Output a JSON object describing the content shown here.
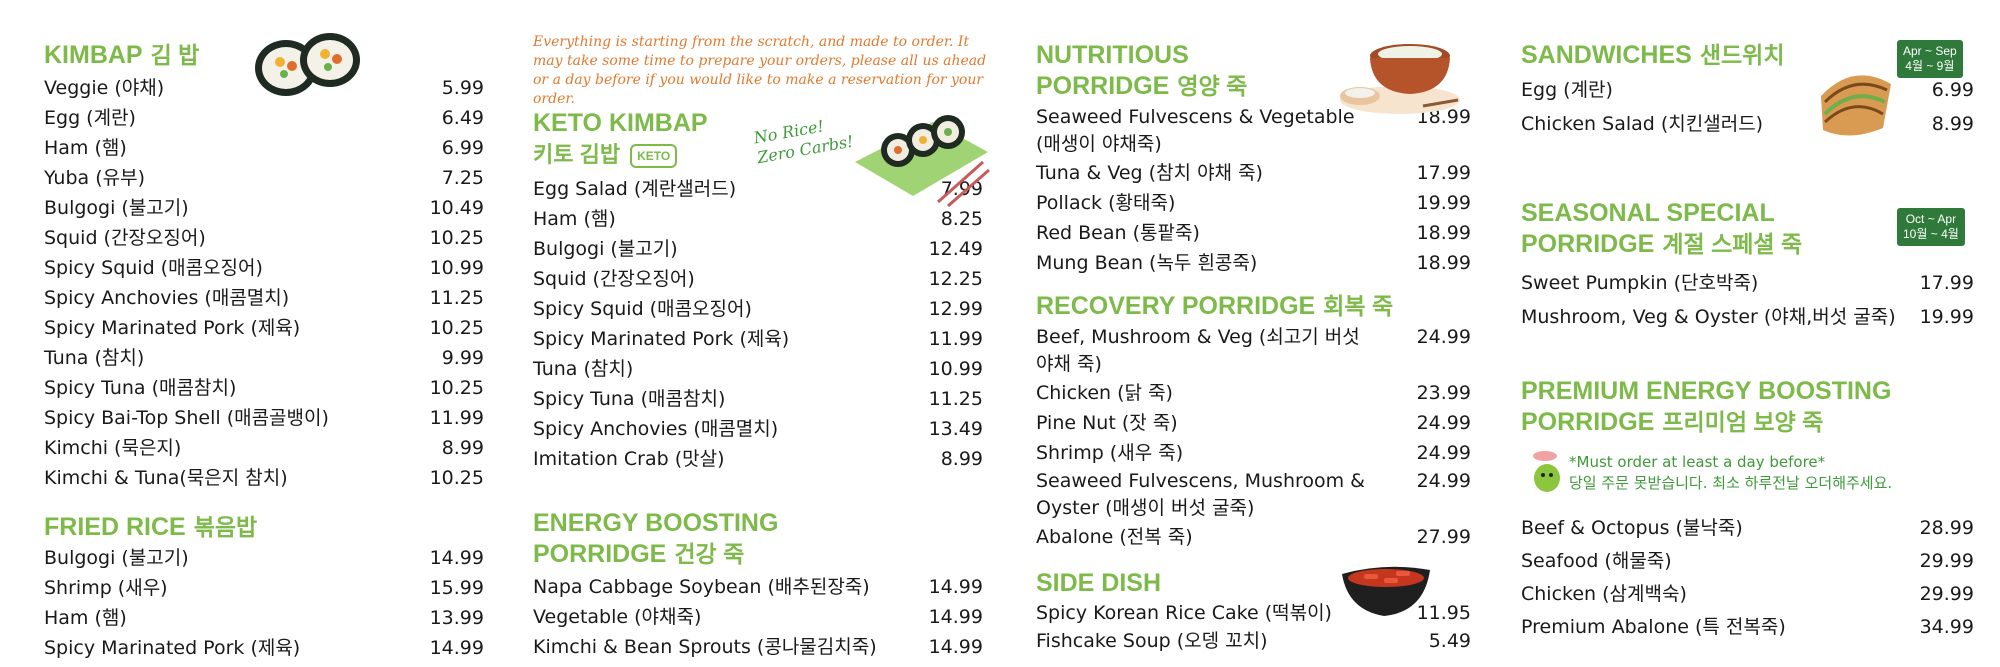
{
  "colors": {
    "heading": "#7dba4a",
    "note": "#e07a2e",
    "badge": "#2f7a3b"
  },
  "kimbap": {
    "title": "KIMBAP",
    "title_ko": "김 밥",
    "items": [
      {
        "name": "Veggie (야채)",
        "price": "5.99"
      },
      {
        "name": "Egg (계란)",
        "price": "6.49"
      },
      {
        "name": "Ham (햄)",
        "price": "6.99"
      },
      {
        "name": "Yuba (유부)",
        "price": "7.25"
      },
      {
        "name": "Bulgogi (불고기)",
        "price": "10.49"
      },
      {
        "name": "Squid (간장오징어)",
        "price": "10.25"
      },
      {
        "name": "Spicy Squid (매콤오징어)",
        "price": "10.99"
      },
      {
        "name": "Spicy Anchovies (매콤멸치)",
        "price": "11.25"
      },
      {
        "name": "Spicy Marinated Pork (제육)",
        "price": "10.25"
      },
      {
        "name": "Tuna (참치)",
        "price": "9.99"
      },
      {
        "name": "Spicy Tuna (매콤참치)",
        "price": "10.25"
      },
      {
        "name": "Spicy Bai-Top Shell (매콤골뱅이)",
        "price": "11.99"
      },
      {
        "name": "Kimchi (묵은지)",
        "price": "8.99"
      },
      {
        "name": "Kimchi & Tuna(묵은지 참치)",
        "price": "10.25"
      }
    ]
  },
  "fried_rice": {
    "title": "FRIED RICE",
    "title_ko": "볶음밥",
    "items": [
      {
        "name": "Bulgogi (불고기)",
        "price": "14.99"
      },
      {
        "name": "Shrimp (새우)",
        "price": "15.99"
      },
      {
        "name": "Ham (햄)",
        "price": "13.99"
      },
      {
        "name": "Spicy Marinated Pork (제육)",
        "price": "14.99"
      }
    ]
  },
  "notice": "Everything is starting from the scratch, and made to order. It may take some time to prepare your orders, please all us ahead or a day before if you would like to make a reservation for your order.",
  "keto_kimbap": {
    "title": "KETO KIMBAP",
    "title_ko": "키토 김밥",
    "keto_badge": "KETO",
    "no_rice": "No Rice!",
    "zero_carbs": "Zero Carbs!",
    "items": [
      {
        "name": "Egg Salad (계란샐러드)",
        "price": "7.99"
      },
      {
        "name": "Ham (햄)",
        "price": "8.25"
      },
      {
        "name": "Bulgogi (불고기)",
        "price": "12.49"
      },
      {
        "name": "Squid (간장오징어)",
        "price": "12.25"
      },
      {
        "name": "Spicy Squid (매콤오징어)",
        "price": "12.99"
      },
      {
        "name": "Spicy Marinated Pork (제육)",
        "price": "11.99"
      },
      {
        "name": "Tuna (참치)",
        "price": "10.99"
      },
      {
        "name": "Spicy Tuna (매콤참치)",
        "price": "11.25"
      },
      {
        "name": "Spicy Anchovies (매콤멸치)",
        "price": "13.49"
      },
      {
        "name": "Imitation Crab (맛살)",
        "price": "8.99"
      }
    ]
  },
  "energy_porridge": {
    "title1": "ENERGY BOOSTING",
    "title2": "PORRIDGE",
    "title_ko": "건강 죽",
    "items": [
      {
        "name": "Napa Cabbage Soybean (배추된장죽)",
        "price": "14.99"
      },
      {
        "name": "Vegetable (야채죽)",
        "price": "14.99"
      },
      {
        "name": "Kimchi & Bean Sprouts (콩나물김치죽)",
        "price": "14.99"
      }
    ]
  },
  "nutritious": {
    "title1": "NUTRITIOUS",
    "title2": "PORRIDGE",
    "title_ko": "영양 죽",
    "items": [
      {
        "name": "Seaweed Fulvescens & Vegetable (매생이 야채죽)",
        "price": "18.99"
      },
      {
        "name": "Tuna & Veg (참치 야채 죽)",
        "price": "17.99"
      },
      {
        "name": "Pollack (황태죽)",
        "price": "19.99"
      },
      {
        "name": "Red Bean (통팥죽)",
        "price": "18.99"
      },
      {
        "name": "Mung Bean (녹두 흰콩죽)",
        "price": "18.99"
      }
    ]
  },
  "recovery": {
    "title": "RECOVERY PORRIDGE",
    "title_ko": "회복 죽",
    "items": [
      {
        "name": "Beef, Mushroom & Veg (쇠고기 버섯 야채 죽)",
        "price": "24.99"
      },
      {
        "name": "Chicken (닭 죽)",
        "price": "23.99"
      },
      {
        "name": "Pine Nut (잣 죽)",
        "price": "24.99"
      },
      {
        "name": "Shrimp (새우 죽)",
        "price": "24.99"
      },
      {
        "name": "Seaweed Fulvescens, Mushroom & Oyster (매생이 버섯 굴죽)",
        "price": "24.99"
      },
      {
        "name": "Abalone (전복 죽)",
        "price": "27.99"
      }
    ]
  },
  "side_dish": {
    "title": "SIDE DISH",
    "items": [
      {
        "name": "Spicy Korean Rice Cake (떡볶이)",
        "price": "11.95"
      },
      {
        "name": "Fishcake Soup (오뎅 꼬치)",
        "price": "5.49"
      }
    ]
  },
  "sandwiches": {
    "title": "SANDWICHES",
    "title_ko": "샌드위치",
    "badge_line1": "Apr ~ Sep",
    "badge_line2": "4월 ~ 9월",
    "items": [
      {
        "name": "Egg (계란)",
        "price": "6.99"
      },
      {
        "name": "Chicken Salad (치킨샐러드)",
        "price": "8.99"
      }
    ]
  },
  "seasonal": {
    "title1": "SEASONAL SPECIAL",
    "title2": "PORRIDGE",
    "title_ko": "계절 스페셜 죽",
    "badge_line1": "Oct ~ Apr",
    "badge_line2": "10월 ~ 4월",
    "items": [
      {
        "name": "Sweet Pumpkin (단호박죽)",
        "price": "17.99"
      },
      {
        "name": "Mushroom, Veg & Oyster (야채,버섯 굴죽)",
        "price": "19.99"
      }
    ]
  },
  "premium": {
    "title1": "PREMIUM ENERGY BOOSTING",
    "title2": "PORRIDGE",
    "title_ko": "프리미엄 보양 죽",
    "warn_en": "*Must order at least a day before*",
    "warn_ko": "당일 주문 못받습니다. 최소 하루전날 오더해주세요.",
    "items": [
      {
        "name": "Beef & Octopus (불낙죽)",
        "price": "28.99"
      },
      {
        "name": "Seafood (해물죽)",
        "price": "29.99"
      },
      {
        "name": "Chicken (삼계백숙)",
        "price": "29.99"
      },
      {
        "name": "Premium Abalone (특 전복죽)",
        "price": "34.99"
      }
    ]
  }
}
